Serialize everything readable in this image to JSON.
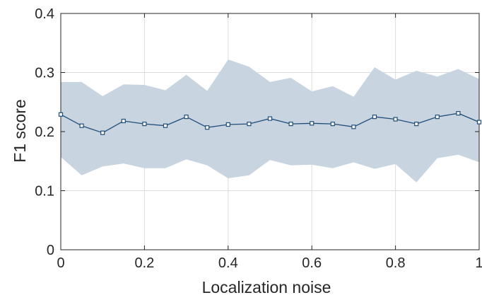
{
  "chart_data": {
    "type": "line",
    "title": "",
    "xlabel": "Localization noise",
    "ylabel": "F1 score",
    "xlim": [
      0,
      1
    ],
    "ylim": [
      0,
      0.4
    ],
    "x_ticks": [
      0,
      0.2,
      0.4,
      0.6,
      0.8,
      1
    ],
    "x_tick_labels": [
      "0",
      "0.2",
      "0.4",
      "0.6",
      "0.8",
      "1"
    ],
    "y_ticks": [
      0,
      0.1,
      0.2,
      0.3,
      0.4
    ],
    "y_tick_labels": [
      "0",
      "0.1",
      "0.2",
      "0.3",
      "0.4"
    ],
    "grid": true,
    "legend": "none",
    "x": [
      0,
      0.05,
      0.1,
      0.15,
      0.2,
      0.25,
      0.3,
      0.35,
      0.4,
      0.45,
      0.5,
      0.55,
      0.6,
      0.65,
      0.7,
      0.75,
      0.8,
      0.85,
      0.9,
      0.95,
      1
    ],
    "series": [
      {
        "values": [
          0.229,
          0.21,
          0.198,
          0.218,
          0.213,
          0.21,
          0.225,
          0.207,
          0.212,
          0.213,
          0.222,
          0.213,
          0.214,
          0.213,
          0.208,
          0.225,
          0.221,
          0.213,
          0.225,
          0.231,
          0.216
        ],
        "lower": [
          0.157,
          0.126,
          0.141,
          0.146,
          0.138,
          0.138,
          0.153,
          0.143,
          0.121,
          0.126,
          0.152,
          0.143,
          0.144,
          0.138,
          0.148,
          0.137,
          0.145,
          0.114,
          0.155,
          0.161,
          0.148
        ],
        "upper": [
          0.284,
          0.284,
          0.26,
          0.28,
          0.279,
          0.27,
          0.296,
          0.269,
          0.322,
          0.31,
          0.284,
          0.291,
          0.268,
          0.277,
          0.259,
          0.309,
          0.288,
          0.303,
          0.293,
          0.306,
          0.289
        ],
        "line_color": "#1f4e7a",
        "band_color": "#c8d4e0",
        "marker": "square"
      }
    ]
  }
}
